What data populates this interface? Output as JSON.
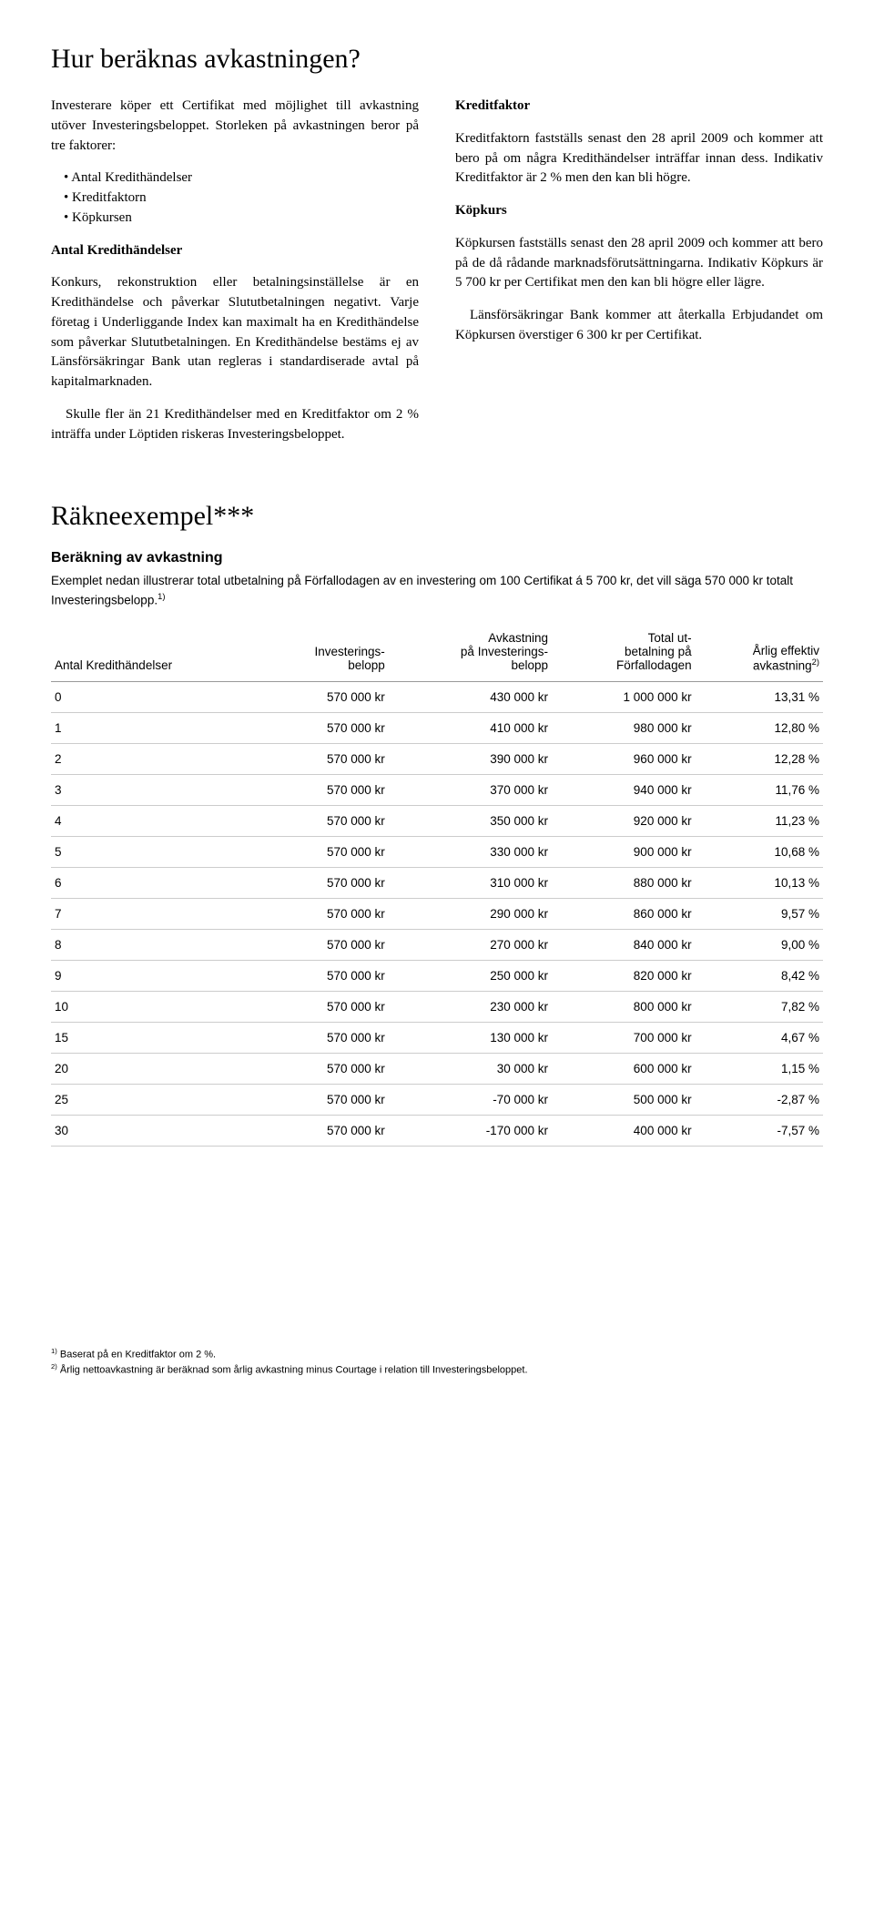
{
  "heading1": "Hur beräknas avkastningen?",
  "left": {
    "p1": "Investerare köper ett Certifikat med möjlighet till avkastning utöver Investeringsbeloppet. Storleken på avkastningen beror på tre faktorer:",
    "bullets": [
      "Antal Kredithändelser",
      "Kreditfaktorn",
      "Köpkursen"
    ],
    "sub1": "Antal Kredithändelser",
    "p2": "Konkurs, rekonstruktion eller betalningsinställelse är en Kredithändelse och påverkar Slututbetalningen negativt. Varje företag i Underliggande Index kan maximalt ha en Kredithändelse som påverkar Slututbetalningen. En Kredithändelse bestäms ej av Länsförsäkringar Bank utan regleras i standardiserade avtal på kapitalmarknaden.",
    "p3": "Skulle fler än 21 Kredithändelser med en Kreditfaktor om 2 % inträffa under Löptiden riskeras Investeringsbeloppet."
  },
  "right": {
    "sub1": "Kreditfaktor",
    "p1": "Kreditfaktorn fastställs senast den 28 april 2009 och kommer att bero på om några Kredithändelser inträffar innan dess. Indikativ Kreditfaktor är 2 % men den kan bli högre.",
    "sub2": "Köpkurs",
    "p2": "Köpkursen fastställs senast den 28 april 2009 och kommer att bero på de då rådande marknadsförutsättningarna. Indikativ Köpkurs är 5 700 kr per Certifikat men den kan bli högre eller lägre.",
    "p3": "Länsförsäkringar Bank kommer att återkalla Erbjudandet om Köpkursen överstiger 6 300 kr per Certifikat."
  },
  "heading2": "Räkneexempel***",
  "calc_title": "Beräkning av avkastning",
  "calc_intro": "Exemplet nedan illustrerar total utbetalning på Förfallodagen av en investering om 100 Certifikat á 5 700 kr, det vill säga 570 000 kr totalt Investeringsbelopp.",
  "calc_intro_sup": "1)",
  "table": {
    "headers": {
      "c1": "Antal Kredithändelser",
      "c2a": "Investerings-",
      "c2b": "belopp",
      "c3a": "Avkastning",
      "c3b": "på Investerings-",
      "c3c": "belopp",
      "c4a": "Total ut-",
      "c4b": "betalning på",
      "c4c": "Förfallodagen",
      "c5a": "Årlig effektiv",
      "c5b": "avkastning",
      "c5sup": "2)"
    },
    "rows": [
      {
        "c1": "0",
        "c2": "570 000 kr",
        "c3": "430 000 kr",
        "c4": "1 000 000 kr",
        "c5": "13,31 %"
      },
      {
        "c1": "1",
        "c2": "570 000 kr",
        "c3": "410 000 kr",
        "c4": "980 000 kr",
        "c5": "12,80 %"
      },
      {
        "c1": "2",
        "c2": "570 000 kr",
        "c3": "390 000 kr",
        "c4": "960 000 kr",
        "c5": "12,28 %"
      },
      {
        "c1": "3",
        "c2": "570 000 kr",
        "c3": "370 000 kr",
        "c4": "940 000 kr",
        "c5": "11,76 %"
      },
      {
        "c1": "4",
        "c2": "570 000 kr",
        "c3": "350 000 kr",
        "c4": "920 000 kr",
        "c5": "11,23 %"
      },
      {
        "c1": "5",
        "c2": "570 000 kr",
        "c3": "330 000 kr",
        "c4": "900 000 kr",
        "c5": "10,68 %"
      },
      {
        "c1": "6",
        "c2": "570 000 kr",
        "c3": "310 000 kr",
        "c4": "880 000 kr",
        "c5": "10,13 %"
      },
      {
        "c1": "7",
        "c2": "570 000 kr",
        "c3": "290 000 kr",
        "c4": "860 000 kr",
        "c5": "9,57 %"
      },
      {
        "c1": "8",
        "c2": "570 000 kr",
        "c3": "270 000 kr",
        "c4": "840 000 kr",
        "c5": "9,00 %"
      },
      {
        "c1": "9",
        "c2": "570 000 kr",
        "c3": "250 000 kr",
        "c4": "820 000 kr",
        "c5": "8,42 %"
      },
      {
        "c1": "10",
        "c2": "570 000 kr",
        "c3": "230 000 kr",
        "c4": "800 000 kr",
        "c5": "7,82 %"
      },
      {
        "c1": "15",
        "c2": "570 000 kr",
        "c3": "130 000 kr",
        "c4": "700 000 kr",
        "c5": "4,67 %"
      },
      {
        "c1": "20",
        "c2": "570 000 kr",
        "c3": "30 000 kr",
        "c4": "600 000 kr",
        "c5": "1,15 %"
      },
      {
        "c1": "25",
        "c2": "570 000 kr",
        "c3": "-70 000 kr",
        "c4": "500 000 kr",
        "c5": "-2,87 %"
      },
      {
        "c1": "30",
        "c2": "570 000 kr",
        "c3": "-170 000 kr",
        "c4": "400 000 kr",
        "c5": "-7,57 %"
      }
    ]
  },
  "footnotes": {
    "f1_sup": "1)",
    "f1": " Baserat på en Kreditfaktor om 2 %.",
    "f2_sup": "2)",
    "f2": " Årlig nettoavkastning är beräknad som årlig avkastning minus Courtage i relation till Investeringsbeloppet."
  }
}
